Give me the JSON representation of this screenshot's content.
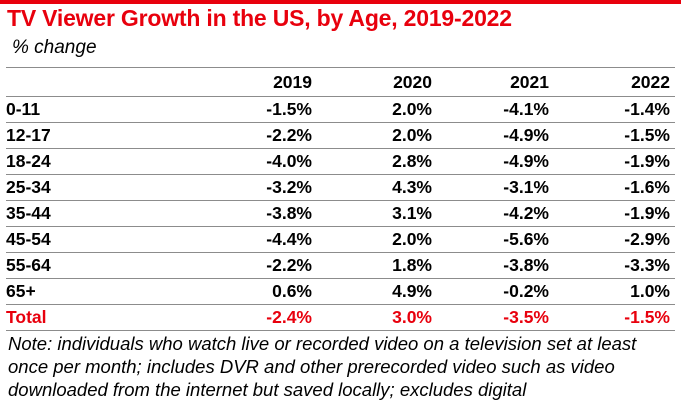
{
  "title": "TV Viewer Growth in the US, by Age, 2019-2022",
  "subtitle": "% change",
  "colors": {
    "accent": "#e8000d",
    "divider": "#8c8c8c"
  },
  "table": {
    "columns": [
      "",
      "2019",
      "2020",
      "2021",
      "2022"
    ],
    "rows": [
      {
        "label": "0-11",
        "values": [
          "-1.5%",
          "2.0%",
          "-4.1%",
          "-1.4%"
        ]
      },
      {
        "label": "12-17",
        "values": [
          "-2.2%",
          "2.0%",
          "-4.9%",
          "-1.5%"
        ]
      },
      {
        "label": "18-24",
        "values": [
          "-4.0%",
          "2.8%",
          "-4.9%",
          "-1.9%"
        ]
      },
      {
        "label": "25-34",
        "values": [
          "-3.2%",
          "4.3%",
          "-3.1%",
          "-1.6%"
        ]
      },
      {
        "label": "35-44",
        "values": [
          "-3.8%",
          "3.1%",
          "-4.2%",
          "-1.9%"
        ]
      },
      {
        "label": "45-54",
        "values": [
          "-4.4%",
          "2.0%",
          "-5.6%",
          "-2.9%"
        ]
      },
      {
        "label": "55-64",
        "values": [
          "-2.2%",
          "1.8%",
          "-3.8%",
          "-3.3%"
        ]
      },
      {
        "label": "65+",
        "values": [
          "0.6%",
          "4.9%",
          "-0.2%",
          "1.0%"
        ]
      }
    ],
    "total": {
      "label": "Total",
      "values": [
        "-2.4%",
        "3.0%",
        "-3.5%",
        "-1.5%"
      ]
    }
  },
  "note": "Note: individuals who watch live or recorded video on a television set at least once per month; includes DVR and other prerecorded video such as video downloaded from the internet but saved locally; excludes digital"
}
